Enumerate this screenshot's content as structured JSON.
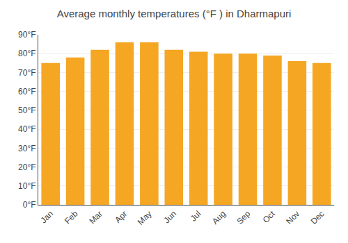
{
  "chart_data": {
    "type": "bar",
    "title": "Average monthly temperatures (°F ) in Dharmapuri",
    "categories": [
      "Jan",
      "Feb",
      "Mar",
      "Apr",
      "May",
      "Jun",
      "Jul",
      "Aug",
      "Sep",
      "Oct",
      "Nov",
      "Dec"
    ],
    "values": [
      75,
      78,
      82,
      86,
      86,
      82,
      81,
      80,
      80,
      79,
      76,
      75
    ],
    "color": "#F5A623",
    "ylim": [
      0,
      90
    ],
    "yticks": [
      {
        "value": 0,
        "label": "0°F"
      },
      {
        "value": 10,
        "label": "10°F"
      },
      {
        "value": 20,
        "label": "20°F"
      },
      {
        "value": 30,
        "label": "30°F"
      },
      {
        "value": 40,
        "label": "40°F"
      },
      {
        "value": 50,
        "label": "50°F"
      },
      {
        "value": 60,
        "label": "60°F"
      },
      {
        "value": 70,
        "label": "70°F"
      },
      {
        "value": 80,
        "label": "80°F"
      },
      {
        "value": 90,
        "label": "90°F"
      }
    ],
    "grid": true
  }
}
